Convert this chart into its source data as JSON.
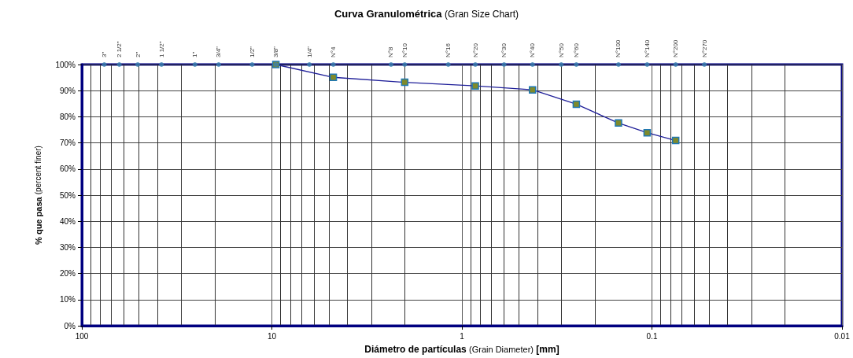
{
  "chart_data": {
    "type": "line",
    "title": "Curva Granulométrica (Gran Size Chart)",
    "xlabel": "Diámetro de partículas (Grain Diameter) [mm]",
    "ylabel": "% que pasa (percent finer)",
    "log": "x",
    "xlim": [
      100,
      0.01
    ],
    "xticks": [
      100,
      10,
      1,
      0.1,
      0.01
    ],
    "ylim": [
      0,
      100
    ],
    "yticks": [
      {
        "value": 0,
        "label": "0%"
      },
      {
        "value": 10,
        "label": "10%"
      },
      {
        "value": 20,
        "label": "20%"
      },
      {
        "value": 30,
        "label": "30%"
      },
      {
        "value": 40,
        "label": "40%"
      },
      {
        "value": 50,
        "label": "50%"
      },
      {
        "value": 60,
        "label": "60%"
      },
      {
        "value": 70,
        "label": "70%"
      },
      {
        "value": 80,
        "label": "80%"
      },
      {
        "value": 90,
        "label": "90%"
      },
      {
        "value": 100,
        "label": "100%"
      }
    ],
    "grid": true,
    "marker": "square",
    "line_style": "solid",
    "series": [
      {
        "color": "#1f1f99",
        "x": [
          9.525,
          4.75,
          2.0,
          0.85,
          0.425,
          0.25,
          0.15,
          0.106,
          0.075
        ],
        "values": [
          100,
          95.1,
          93.2,
          91.8,
          90.3,
          84.8,
          77.6,
          73.9,
          70.9
        ]
      },
      {
        "type": "scatter",
        "marker": "circle",
        "color": "#3a7fb0",
        "x": [
          76.2,
          63.5,
          50.8,
          38.1,
          25.4,
          19.05,
          12.7,
          9.525,
          6.35,
          4.75,
          2.36,
          2.0,
          1.18,
          0.85,
          0.6,
          0.425,
          0.3,
          0.25,
          0.15,
          0.106,
          0.075,
          0.053
        ],
        "values": [
          100,
          100,
          100,
          100,
          100,
          100,
          100,
          100,
          100,
          100,
          100,
          100,
          100,
          100,
          100,
          100,
          100,
          100,
          100,
          100,
          100,
          100
        ]
      }
    ],
    "annotations": [
      "3\"",
      "2 1/2\"",
      "2\"",
      "1 1/2\"",
      "1\"",
      "3/4\"",
      "1/2\"",
      "3/8\"",
      "1/4\"",
      "N°4",
      "N°8",
      "N°10",
      "N°16",
      "N°20",
      "N°30",
      "N°40",
      "N°50",
      "N°60",
      "N°100",
      "N°140",
      "N°200",
      "N°270"
    ]
  }
}
